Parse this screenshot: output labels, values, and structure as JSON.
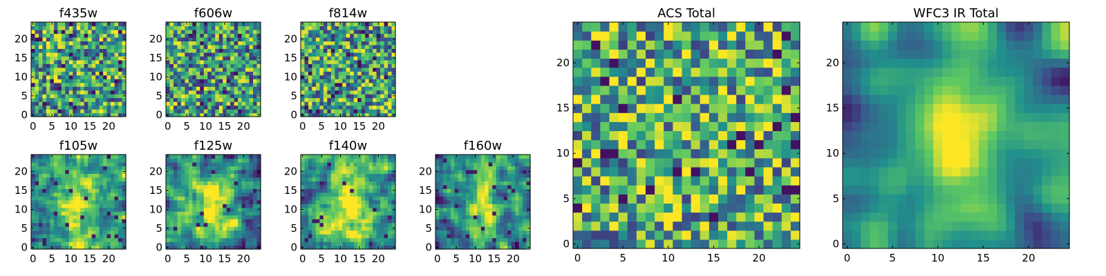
{
  "figure": {
    "colormap": "viridis",
    "colormap_stops": [
      "#440154",
      "#3b528b",
      "#21918c",
      "#5ec962",
      "#fde725"
    ],
    "frame_color": "#000000"
  },
  "chart_data": [
    {
      "type": "heatmap",
      "title": "f435w",
      "grid": false,
      "x_range": [
        -0.5,
        24.5
      ],
      "y_range": [
        -0.5,
        24.5
      ],
      "xticks": [
        0,
        5,
        10,
        15,
        20
      ],
      "yticks": [
        0,
        5,
        10,
        15,
        20
      ],
      "pattern": "noise",
      "bias": 0.6,
      "seed": 11
    },
    {
      "type": "heatmap",
      "title": "f606w",
      "grid": false,
      "x_range": [
        -0.5,
        24.5
      ],
      "y_range": [
        -0.5,
        24.5
      ],
      "xticks": [
        0,
        5,
        10,
        15,
        20
      ],
      "yticks": [
        0,
        5,
        10,
        15,
        20
      ],
      "pattern": "noise",
      "bias": 0.58,
      "seed": 23
    },
    {
      "type": "heatmap",
      "title": "f814w",
      "grid": false,
      "x_range": [
        -0.5,
        24.5
      ],
      "y_range": [
        -0.5,
        24.5
      ],
      "xticks": [
        0,
        5,
        10,
        15,
        20
      ],
      "yticks": [
        0,
        5,
        10,
        15,
        20
      ],
      "pattern": "noise",
      "bias": 0.6,
      "seed": 37
    },
    {
      "type": "heatmap",
      "title": "f105w",
      "grid": false,
      "x_range": [
        -0.5,
        24.5
      ],
      "y_range": [
        -0.5,
        24.5
      ],
      "xticks": [
        0,
        5,
        10,
        15,
        20
      ],
      "yticks": [
        0,
        5,
        10,
        15,
        20
      ],
      "pattern": "source",
      "bias": 0.5,
      "seed": 41
    },
    {
      "type": "heatmap",
      "title": "f125w",
      "grid": false,
      "x_range": [
        -0.5,
        24.5
      ],
      "y_range": [
        -0.5,
        24.5
      ],
      "xticks": [
        0,
        5,
        10,
        15,
        20
      ],
      "yticks": [
        0,
        5,
        10,
        15,
        20
      ],
      "pattern": "source",
      "bias": 0.48,
      "seed": 53
    },
    {
      "type": "heatmap",
      "title": "f140w",
      "grid": false,
      "x_range": [
        -0.5,
        24.5
      ],
      "y_range": [
        -0.5,
        24.5
      ],
      "xticks": [
        0,
        5,
        10,
        15,
        20
      ],
      "yticks": [
        0,
        5,
        10,
        15,
        20
      ],
      "pattern": "source",
      "bias": 0.55,
      "seed": 67
    },
    {
      "type": "heatmap",
      "title": "f160w",
      "grid": false,
      "x_range": [
        -0.5,
        24.5
      ],
      "y_range": [
        -0.5,
        24.5
      ],
      "xticks": [
        0,
        5,
        10,
        15,
        20
      ],
      "yticks": [
        0,
        5,
        10,
        15,
        20
      ],
      "pattern": "source",
      "bias": 0.45,
      "seed": 79
    },
    {
      "type": "heatmap",
      "title": "ACS Total",
      "grid": false,
      "x_range": [
        -0.5,
        24.5
      ],
      "y_range": [
        -0.5,
        24.5
      ],
      "xticks": [
        0,
        5,
        10,
        15,
        20
      ],
      "yticks": [
        0,
        5,
        10,
        15,
        20
      ],
      "pattern": "noise",
      "bias": 0.64,
      "seed": 97
    },
    {
      "type": "heatmap",
      "title": "WFC3 IR Total",
      "grid": false,
      "x_range": [
        -0.5,
        24.5
      ],
      "y_range": [
        -0.5,
        24.5
      ],
      "xticks": [
        0,
        5,
        10,
        15,
        20
      ],
      "yticks": [
        0,
        5,
        10,
        15,
        20
      ],
      "pattern": "smooth",
      "bias": 0.45,
      "seed": 113
    }
  ]
}
